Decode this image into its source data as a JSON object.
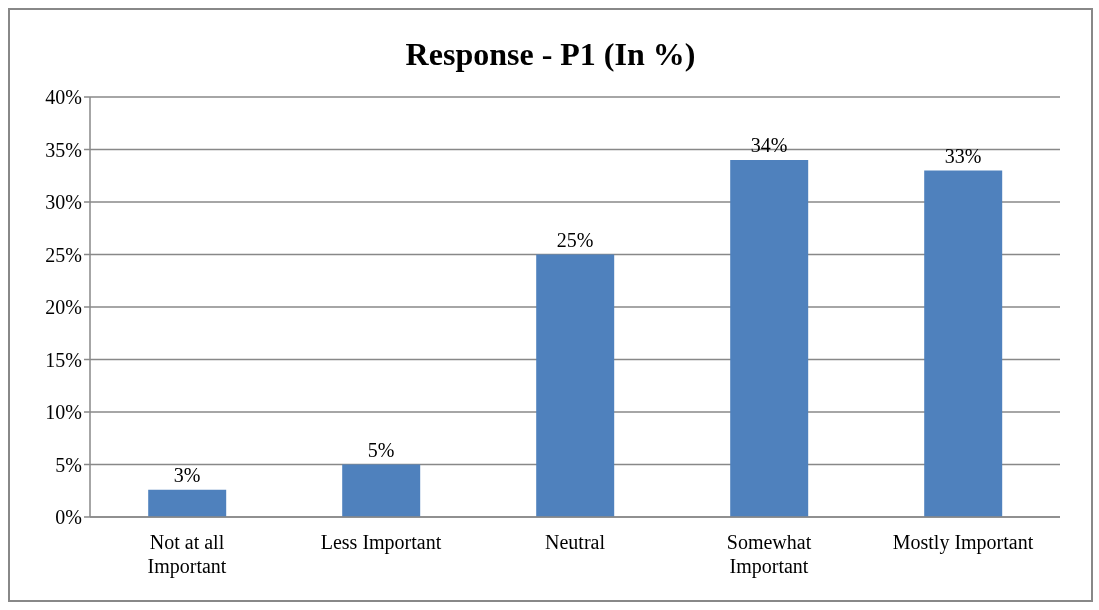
{
  "chart_data": {
    "type": "bar",
    "title": "Response - P1 (In %)",
    "categories": [
      "Not at all Important",
      "Less Important",
      "Neutral",
      "Somewhat Important",
      "Mostly Important"
    ],
    "values": [
      2.6,
      5,
      25,
      34,
      33
    ],
    "value_labels": [
      "3%",
      "5%",
      "25%",
      "34%",
      "33%"
    ],
    "color": "#4f81bd",
    "ylim": [
      0,
      40
    ],
    "yticks": [
      {
        "value": 0,
        "label": "0%"
      },
      {
        "value": 5,
        "label": "5%"
      },
      {
        "value": 10,
        "label": "10%"
      },
      {
        "value": 15,
        "label": "15%"
      },
      {
        "value": 20,
        "label": "20%"
      },
      {
        "value": 25,
        "label": "25%"
      },
      {
        "value": 30,
        "label": "30%"
      },
      {
        "value": 35,
        "label": "35%"
      },
      {
        "value": 40,
        "label": "40%"
      }
    ],
    "grid": "y"
  }
}
